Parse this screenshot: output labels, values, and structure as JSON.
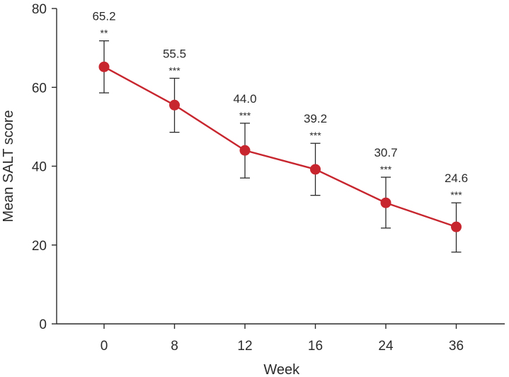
{
  "chart_data": {
    "type": "line",
    "title": "",
    "xlabel": "Week",
    "ylabel": "Mean SALT score",
    "categories": [
      "0",
      "8",
      "12",
      "16",
      "24",
      "36"
    ],
    "series": [
      {
        "name": "Mean SALT score",
        "values": [
          65.2,
          55.5,
          44.0,
          39.2,
          30.7,
          24.6
        ],
        "error_upper": [
          71.8,
          62.3,
          50.9,
          45.8,
          37.2,
          30.7
        ],
        "error_lower": [
          58.6,
          48.6,
          37.0,
          32.6,
          24.3,
          18.2
        ],
        "value_labels": [
          "65.2",
          "55.5",
          "44.0",
          "39.2",
          "30.7",
          "24.6"
        ],
        "significance": [
          "**",
          "***",
          "***",
          "***",
          "***",
          "***"
        ]
      }
    ],
    "ylim": [
      0,
      80
    ],
    "yticks": [
      0,
      20,
      40,
      60,
      80
    ],
    "grid": false,
    "legend": "none",
    "colors": {
      "line": "#c8262f",
      "marker": "#c8262f",
      "axis": "#2b2b2b",
      "errorbar": "#2b2b2b"
    }
  }
}
